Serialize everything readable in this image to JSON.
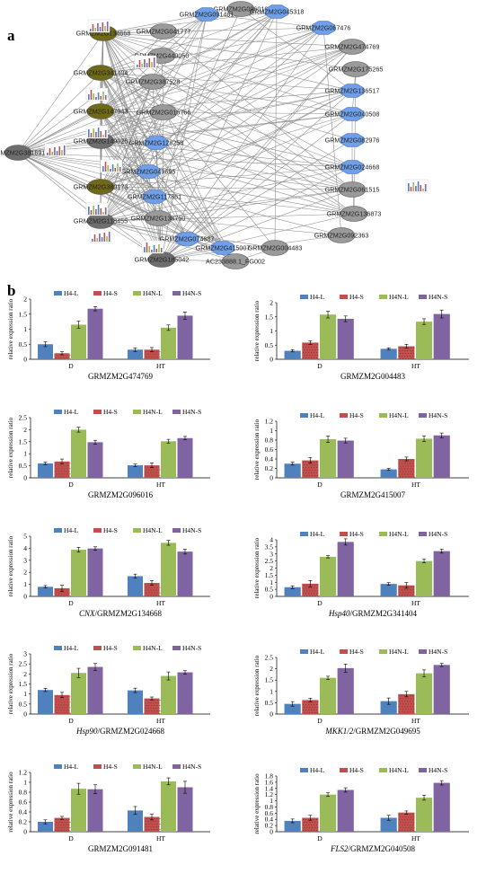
{
  "panel_a_label": "a",
  "panel_b_label": "b",
  "colors": {
    "node_grey": "#9a9a9a",
    "node_blue": "#6f9fe8",
    "node_olive": "#6f6a18",
    "node_dark": "#6e6e6e",
    "edge": "#8a8a8a",
    "H4-L": "#4f81bd",
    "H4-S": "#c0504d",
    "H4N-L": "#9bbb59",
    "H4N-S": "#8064a2"
  },
  "network": {
    "nodes": [
      {
        "label": "GRMZM2G096016",
        "color": "grey"
      },
      {
        "label": "GRMZM2G091481",
        "color": "blue"
      },
      {
        "label": "GRMZM2G045318",
        "color": "blue"
      },
      {
        "label": "GRMZM2G041777",
        "color": "grey"
      },
      {
        "label": "GRMZM2G067476",
        "color": "blue"
      },
      {
        "label": "GRMZM2G134668",
        "color": "olive"
      },
      {
        "label": "GRMZM2G449050",
        "color": "grey"
      },
      {
        "label": "GRMZM2G474769",
        "color": "grey"
      },
      {
        "label": "GRMZM2G341404",
        "color": "olive"
      },
      {
        "label": "GRMZM2G175265",
        "color": "grey"
      },
      {
        "label": "GRMZM2G387528",
        "color": "grey"
      },
      {
        "label": "GRMZM2G136517",
        "color": "blue"
      },
      {
        "label": "GRMZM2G147943",
        "color": "olive"
      },
      {
        "label": "GRMZM2G016766",
        "color": "grey"
      },
      {
        "label": "GRMZM2G040508",
        "color": "blue"
      },
      {
        "label": "GRMZM2G381691",
        "color": "dark"
      },
      {
        "label": "GRMZM2G149026",
        "color": "dark"
      },
      {
        "label": "GRMZM2G128258",
        "color": "blue"
      },
      {
        "label": "GRMZM2G082976",
        "color": "blue"
      },
      {
        "label": "GRMZM2G049695",
        "color": "blue"
      },
      {
        "label": "GRMZM2G024668",
        "color": "blue"
      },
      {
        "label": "GRMZM2G389173",
        "color": "olive"
      },
      {
        "label": "GRMZM2G117861",
        "color": "blue"
      },
      {
        "label": "GRMZM2G061515",
        "color": "grey"
      },
      {
        "label": "GRMZM2G118455",
        "color": "dark"
      },
      {
        "label": "GRMZM2G136873",
        "color": "grey"
      },
      {
        "label": "GRMZM2G138750",
        "color": "grey"
      },
      {
        "label": "GRMZM2G092363",
        "color": "grey"
      },
      {
        "label": "GRMZM2G074687",
        "color": "blue"
      },
      {
        "label": "GRMZM2G415007",
        "color": "blue"
      },
      {
        "label": "GRMZM2G004483",
        "color": "grey"
      },
      {
        "label": "GRMZM2G185042",
        "color": "dark"
      },
      {
        "label": "AC233888.1_FG002",
        "color": "grey"
      }
    ]
  },
  "legend": [
    "H4-L",
    "H4-S",
    "H4N-L",
    "H4N-S"
  ],
  "chart_data": [
    {
      "type": "bar",
      "gene": "GRMZM2G474769",
      "gene_prefix": "",
      "ylabel": "relative expression ratio",
      "categories": [
        "D",
        "HT"
      ],
      "ylim": [
        0,
        2
      ],
      "yticks": [
        "0",
        "0.5",
        "1",
        "1.5",
        "2"
      ],
      "series": [
        {
          "name": "H4-L",
          "values": [
            0.5,
            0.32
          ],
          "errors": [
            0.08,
            0.06
          ]
        },
        {
          "name": "H4-S",
          "values": [
            0.2,
            0.32
          ],
          "errors": [
            0.05,
            0.07
          ]
        },
        {
          "name": "H4N-L",
          "values": [
            1.15,
            1.05
          ],
          "errors": [
            0.12,
            0.09
          ]
        },
        {
          "name": "H4N-S",
          "values": [
            1.68,
            1.45
          ],
          "errors": [
            0.07,
            0.12
          ]
        }
      ]
    },
    {
      "type": "bar",
      "gene": "GRMZM2G004483",
      "gene_prefix": "",
      "ylabel": "relative expression ratio",
      "categories": [
        "D",
        "HT"
      ],
      "ylim": [
        0,
        2
      ],
      "yticks": [
        "0",
        "0.5",
        "1",
        "1.5",
        "2"
      ],
      "series": [
        {
          "name": "H4-L",
          "values": [
            0.3,
            0.37
          ],
          "errors": [
            0.04,
            0.03
          ]
        },
        {
          "name": "H4-S",
          "values": [
            0.59,
            0.46
          ],
          "errors": [
            0.06,
            0.07
          ]
        },
        {
          "name": "H4N-L",
          "values": [
            1.58,
            1.33
          ],
          "errors": [
            0.12,
            0.1
          ]
        },
        {
          "name": "H4N-S",
          "values": [
            1.43,
            1.6
          ],
          "errors": [
            0.1,
            0.14
          ]
        }
      ]
    },
    {
      "type": "bar",
      "gene": "GRMZM2G096016",
      "gene_prefix": "",
      "ylabel": "relative expression ratio",
      "categories": [
        "D",
        "HT"
      ],
      "ylim": [
        0,
        2.5
      ],
      "yticks": [
        "0",
        "0.5",
        "1",
        "1.5",
        "2",
        "2.5"
      ],
      "series": [
        {
          "name": "H4-L",
          "values": [
            0.6,
            0.52
          ],
          "errors": [
            0.05,
            0.05
          ]
        },
        {
          "name": "H4-S",
          "values": [
            0.68,
            0.52
          ],
          "errors": [
            0.1,
            0.1
          ]
        },
        {
          "name": "H4N-L",
          "values": [
            2.0,
            1.52
          ],
          "errors": [
            0.1,
            0.08
          ]
        },
        {
          "name": "H4N-S",
          "values": [
            1.48,
            1.65
          ],
          "errors": [
            0.08,
            0.07
          ]
        }
      ]
    },
    {
      "type": "bar",
      "gene": "GRMZM2G415007",
      "gene_prefix": "",
      "ylabel": "relative expression ratio",
      "categories": [
        "D",
        "HT"
      ],
      "ylim": [
        0,
        1.2
      ],
      "yticks": [
        "0",
        "0.2",
        "0.4",
        "0.6",
        "0.8",
        "1",
        "1.2"
      ],
      "series": [
        {
          "name": "H4-L",
          "values": [
            0.3,
            0.18
          ],
          "errors": [
            0.03,
            0.02
          ]
        },
        {
          "name": "H4-S",
          "values": [
            0.37,
            0.4
          ],
          "errors": [
            0.06,
            0.04
          ]
        },
        {
          "name": "H4N-L",
          "values": [
            0.82,
            0.83
          ],
          "errors": [
            0.07,
            0.06
          ]
        },
        {
          "name": "H4N-S",
          "values": [
            0.79,
            0.9
          ],
          "errors": [
            0.05,
            0.05
          ]
        }
      ]
    },
    {
      "type": "bar",
      "gene": "GRMZM2G134668",
      "gene_prefix": "CNX",
      "ylabel": "relative expression ratio",
      "categories": [
        "D",
        "HT"
      ],
      "ylim": [
        0,
        5
      ],
      "yticks": [
        "0",
        "1",
        "2",
        "3",
        "4",
        "5"
      ],
      "series": [
        {
          "name": "H4-L",
          "values": [
            0.8,
            1.68
          ],
          "errors": [
            0.1,
            0.17
          ]
        },
        {
          "name": "H4-S",
          "values": [
            0.68,
            1.12
          ],
          "errors": [
            0.25,
            0.2
          ]
        },
        {
          "name": "H4N-L",
          "values": [
            3.88,
            4.45
          ],
          "errors": [
            0.2,
            0.2
          ]
        },
        {
          "name": "H4N-S",
          "values": [
            3.98,
            3.72
          ],
          "errors": [
            0.14,
            0.2
          ]
        }
      ]
    },
    {
      "type": "bar",
      "gene": "GRMZM2G341404",
      "gene_prefix": "Hsp40",
      "ylabel": "relative expression ratio",
      "categories": [
        "D",
        "HT"
      ],
      "ylim": [
        0,
        4
      ],
      "yticks": [
        "0",
        "0.5",
        "1",
        "1.5",
        "2",
        "2.5",
        "3",
        "3.5",
        "4"
      ],
      "series": [
        {
          "name": "H4-L",
          "values": [
            0.65,
            0.88
          ],
          "errors": [
            0.1,
            0.09
          ]
        },
        {
          "name": "H4-S",
          "values": [
            0.9,
            0.78
          ],
          "errors": [
            0.22,
            0.2
          ]
        },
        {
          "name": "H4N-L",
          "values": [
            2.8,
            2.5
          ],
          "errors": [
            0.08,
            0.13
          ]
        },
        {
          "name": "H4N-S",
          "values": [
            3.85,
            3.2
          ],
          "errors": [
            0.22,
            0.14
          ]
        }
      ]
    },
    {
      "type": "bar",
      "gene": "GRMZM2G024668",
      "gene_prefix": "Hsp90",
      "ylabel": "relative expression ratio",
      "categories": [
        "D",
        "HT"
      ],
      "ylim": [
        0,
        3
      ],
      "yticks": [
        "0",
        "0.5",
        "1",
        "1.5",
        "2",
        "2.5",
        "3"
      ],
      "series": [
        {
          "name": "H4-L",
          "values": [
            1.2,
            1.18
          ],
          "errors": [
            0.08,
            0.11
          ]
        },
        {
          "name": "H4-S",
          "values": [
            0.95,
            0.78
          ],
          "errors": [
            0.13,
            0.07
          ]
        },
        {
          "name": "H4N-L",
          "values": [
            2.05,
            1.9
          ],
          "errors": [
            0.23,
            0.2
          ]
        },
        {
          "name": "H4N-S",
          "values": [
            2.35,
            2.08
          ],
          "errors": [
            0.17,
            0.08
          ]
        }
      ]
    },
    {
      "type": "bar",
      "gene": "GRMZM2G049695",
      "gene_prefix": "MKK1/2",
      "ylabel": "relative expression ratio",
      "categories": [
        "D",
        "HT"
      ],
      "ylim": [
        0,
        2.5
      ],
      "yticks": [
        "0",
        "0.5",
        "1",
        "1.5",
        "2",
        "2.5"
      ],
      "series": [
        {
          "name": "H4-L",
          "values": [
            0.45,
            0.57
          ],
          "errors": [
            0.1,
            0.14
          ]
        },
        {
          "name": "H4-S",
          "values": [
            0.62,
            0.88
          ],
          "errors": [
            0.08,
            0.12
          ]
        },
        {
          "name": "H4N-L",
          "values": [
            1.6,
            1.8
          ],
          "errors": [
            0.07,
            0.15
          ]
        },
        {
          "name": "H4N-S",
          "values": [
            2.03,
            2.17
          ],
          "errors": [
            0.18,
            0.07
          ]
        }
      ]
    },
    {
      "type": "bar",
      "gene": "GRMZM2G091481",
      "gene_prefix": "",
      "ylabel": "relative expression ratio",
      "categories": [
        "D",
        "HT"
      ],
      "ylim": [
        0,
        1.2
      ],
      "yticks": [
        "0",
        "0.2",
        "0.4",
        "0.6",
        "0.8",
        "1",
        "1.2"
      ],
      "series": [
        {
          "name": "H4-L",
          "values": [
            0.2,
            0.43
          ],
          "errors": [
            0.04,
            0.08
          ]
        },
        {
          "name": "H4-S",
          "values": [
            0.28,
            0.3
          ],
          "errors": [
            0.03,
            0.06
          ]
        },
        {
          "name": "H4N-L",
          "values": [
            0.87,
            1.02
          ],
          "errors": [
            0.11,
            0.07
          ]
        },
        {
          "name": "H4N-S",
          "values": [
            0.86,
            0.9
          ],
          "errors": [
            0.09,
            0.12
          ]
        }
      ]
    },
    {
      "type": "bar",
      "gene": "GRMZM2G040508",
      "gene_prefix": "FLS2",
      "ylabel": "relative expression ratio",
      "categories": [
        "D",
        "HT"
      ],
      "ylim": [
        0,
        1.8
      ],
      "yticks": [
        "0",
        "0.2",
        "0.4",
        "0.6",
        "0.8",
        "1",
        "1.2",
        "1.4",
        "1.6",
        "1.8"
      ],
      "series": [
        {
          "name": "H4-L",
          "values": [
            0.35,
            0.45
          ],
          "errors": [
            0.06,
            0.08
          ]
        },
        {
          "name": "H4-S",
          "values": [
            0.45,
            0.62
          ],
          "errors": [
            0.08,
            0.05
          ]
        },
        {
          "name": "H4N-L",
          "values": [
            1.2,
            1.1
          ],
          "errors": [
            0.06,
            0.08
          ]
        },
        {
          "name": "H4N-S",
          "values": [
            1.35,
            1.58
          ],
          "errors": [
            0.07,
            0.07
          ]
        }
      ]
    }
  ]
}
